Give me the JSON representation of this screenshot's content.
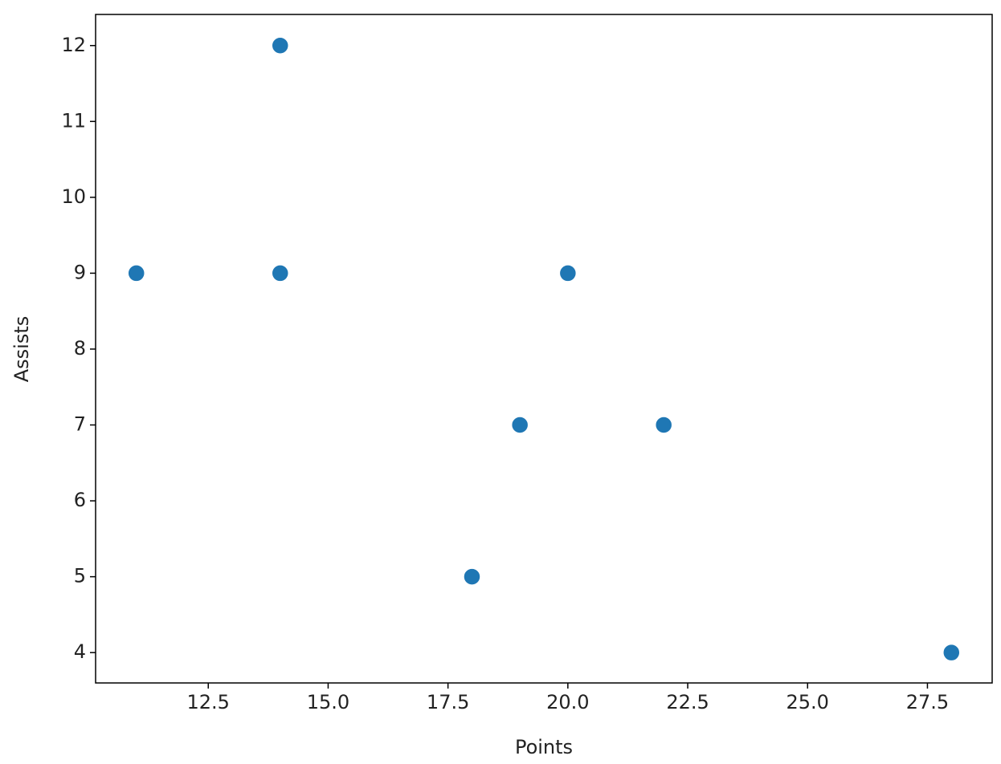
{
  "chart_data": {
    "type": "scatter",
    "xlabel": "Points",
    "ylabel": "Assists",
    "x": [
      11,
      14,
      14,
      18,
      19,
      20,
      22,
      28
    ],
    "values": [
      9,
      12,
      9,
      5,
      7,
      9,
      7,
      4
    ],
    "color": "#1f77b4",
    "xlim": [
      10.15,
      28.85
    ],
    "ylim": [
      3.6,
      12.41
    ],
    "xticks": [
      12.5,
      {
        "value": 15,
        "label": "15.0"
      },
      17.5,
      {
        "value": 20,
        "label": "20.0"
      },
      22.5,
      {
        "value": 25,
        "label": "25.0"
      },
      27.5
    ],
    "yticks": [
      4,
      5,
      6,
      7,
      8,
      9,
      10,
      11,
      12
    ],
    "grid": false
  }
}
